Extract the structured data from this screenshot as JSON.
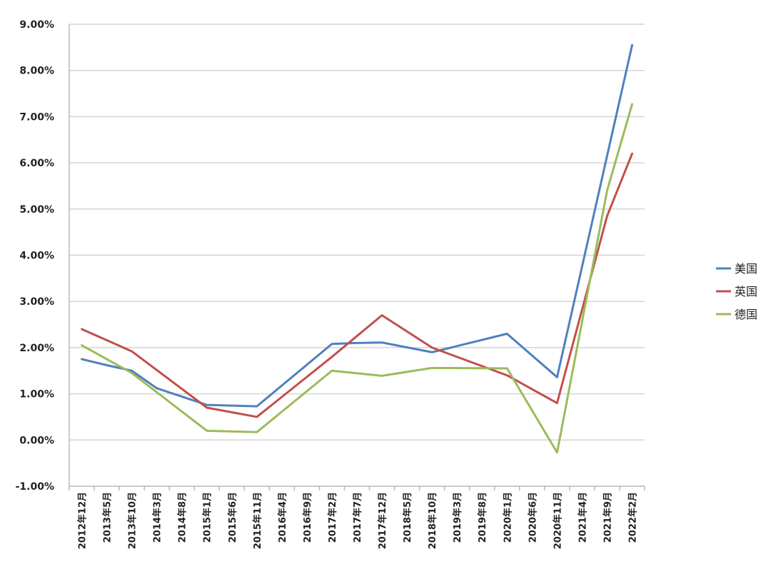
{
  "chart_data": {
    "type": "line",
    "title": "",
    "xlabel": "",
    "ylabel": "",
    "ylim": [
      -1.0,
      9.0
    ],
    "ytick_step": 1.0,
    "y_format": "percent_2dp",
    "grid": true,
    "legend_position": "right",
    "categories": [
      "2012年12月",
      "2013年5月",
      "2013年10月",
      "2014年3月",
      "2014年8月",
      "2015年1月",
      "2015年6月",
      "2015年11月",
      "2016年4月",
      "2016年9月",
      "2017年2月",
      "2017年7月",
      "2017年12月",
      "2018年5月",
      "2018年10月",
      "2019年3月",
      "2019年8月",
      "2020年1月",
      "2020年6月",
      "2020年11月",
      "2021年4月",
      "2021年9月",
      "2022年2月"
    ],
    "series": [
      {
        "name": "美国",
        "color": "#4f81bd",
        "values": [
          1.75,
          1.62,
          1.5,
          1.12,
          null,
          0.76,
          null,
          0.73,
          null,
          null,
          2.08,
          2.1,
          2.11,
          null,
          1.9,
          null,
          null,
          2.3,
          null,
          1.36,
          null,
          null,
          8.55
        ]
      },
      {
        "name": "英国",
        "color": "#c0504d",
        "values": [
          2.4,
          2.16,
          1.92,
          null,
          null,
          0.7,
          0.6,
          0.5,
          null,
          null,
          1.8,
          null,
          2.7,
          null,
          2.0,
          null,
          null,
          1.4,
          null,
          0.8,
          null,
          4.85,
          6.2
        ]
      },
      {
        "name": "德国",
        "color": "#9bbb59",
        "values": [
          2.05,
          1.75,
          1.45,
          null,
          null,
          0.2,
          null,
          0.17,
          null,
          null,
          1.5,
          null,
          1.39,
          null,
          1.56,
          null,
          null,
          1.55,
          null,
          -0.27,
          null,
          5.4,
          7.27
        ]
      }
    ]
  }
}
